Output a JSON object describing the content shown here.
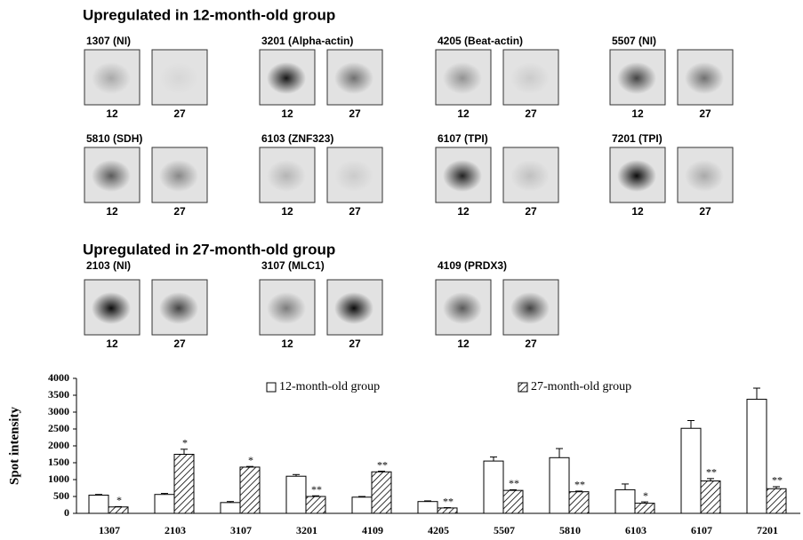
{
  "panels": [
    {
      "title": "Upregulated in 12-month-old group",
      "rows": [
        [
          {
            "label": "1307 (NI)",
            "lanes": [
              "12",
              "27"
            ]
          },
          {
            "label": "3201 (Alpha-actin)",
            "lanes": [
              "12",
              "27"
            ]
          },
          {
            "label": "4205 (Beat-actin)",
            "lanes": [
              "12",
              "27"
            ]
          },
          {
            "label": "5507 (NI)",
            "lanes": [
              "12",
              "27"
            ]
          }
        ],
        [
          {
            "label": "5810 (SDH)",
            "lanes": [
              "12",
              "27"
            ]
          },
          {
            "label": "6103 (ZNF323)",
            "lanes": [
              "12",
              "27"
            ]
          },
          {
            "label": "6107 (TPI)",
            "lanes": [
              "12",
              "27"
            ]
          },
          {
            "label": "7201 (TPI)",
            "lanes": [
              "12",
              "27"
            ]
          }
        ]
      ]
    },
    {
      "title": "Upregulated in 27-month-old group",
      "rows": [
        [
          {
            "label": "2103 (NI)",
            "lanes": [
              "12",
              "27"
            ]
          },
          {
            "label": "3107 (MLC1)",
            "lanes": [
              "12",
              "27"
            ]
          },
          {
            "label": "4109 (PRDX3)",
            "lanes": [
              "12",
              "27"
            ]
          }
        ]
      ]
    }
  ],
  "chart_data": {
    "type": "bar",
    "y_label": "Spot intensity",
    "categories": [
      "1307",
      "2103",
      "3107",
      "3201",
      "4109",
      "4205",
      "5507",
      "5810",
      "6103",
      "6107",
      "7201"
    ],
    "series": [
      {
        "name": "12-month-old group",
        "color": "#ffffff",
        "values": [
          540,
          560,
          320,
          1100,
          480,
          350,
          1550,
          1650,
          700,
          2520,
          3380
        ],
        "errors": [
          20,
          30,
          30,
          50,
          20,
          20,
          120,
          270,
          170,
          230,
          330
        ]
      },
      {
        "name": "27-month-old group",
        "color": "hatch",
        "values": [
          190,
          1750,
          1370,
          500,
          1230,
          160,
          680,
          640,
          300,
          960,
          730
        ],
        "errors": [
          10,
          150,
          20,
          20,
          20,
          10,
          20,
          20,
          40,
          70,
          60
        ],
        "annotations": [
          "*",
          "*",
          "*",
          "**",
          "**",
          "**",
          "**",
          "**",
          "*",
          "**",
          "**"
        ]
      }
    ],
    "ylim": [
      0,
      4000
    ],
    "yticks": [
      0,
      500,
      1000,
      1500,
      2000,
      2500,
      3000,
      3500,
      4000
    ],
    "legend": "top"
  }
}
